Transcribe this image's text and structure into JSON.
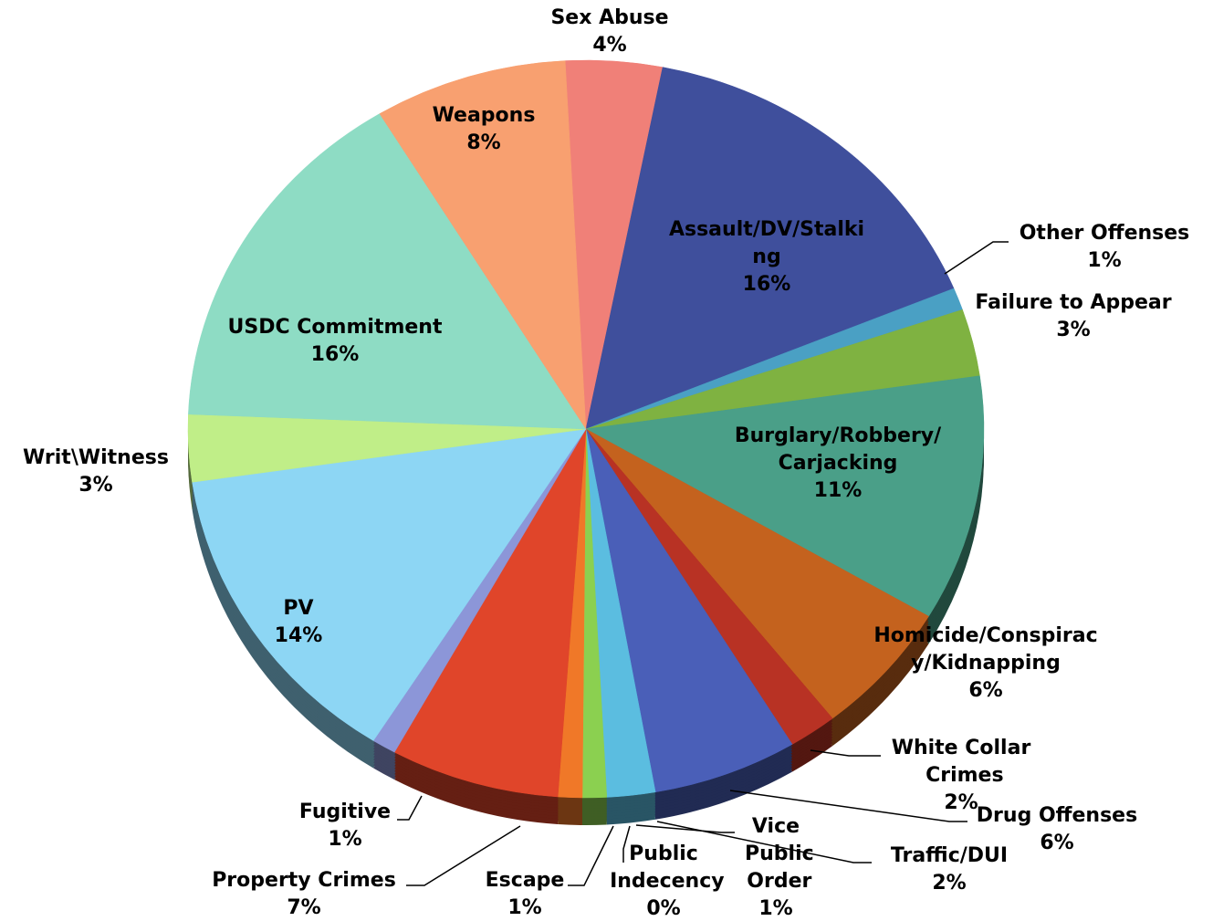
{
  "chart_data": {
    "type": "pie",
    "categories": [
      "Sex Abuse",
      "Assault/DV/Stalking",
      "Other Offenses",
      "Failure to Appear",
      "Burglary/Robbery/Carjacking",
      "Homicide/Conspiracy/Kidnapping",
      "White Collar Crimes",
      "Drug Offenses",
      "Traffic/DUI",
      "Vice Public Order",
      "Public Indecency",
      "Escape",
      "Property Crimes",
      "Fugitive",
      "PV",
      "Writ\\Witness",
      "USDC Commitment",
      "Weapons"
    ],
    "values": [
      4,
      16,
      1,
      3,
      11,
      6,
      2,
      6,
      2,
      1,
      0,
      1,
      7,
      1,
      14,
      3,
      16,
      8
    ],
    "value_labels": [
      "4%",
      "16%",
      "1%",
      "3%",
      "11%",
      "6%",
      "2%",
      "6%",
      "2%",
      "1%",
      "0%",
      "1%",
      "7%",
      "1%",
      "14%",
      "3%",
      "16%",
      "8%"
    ],
    "colors": [
      "#f08078",
      "#3f4f9c",
      "#4aa0c4",
      "#7fb241",
      "#4a9f88",
      "#c4621e",
      "#b83224",
      "#4a5fb8",
      "#5bbde0",
      "#8bd050",
      "#a0d860",
      "#f07828",
      "#e0452a",
      "#8c96d8",
      "#8dd6f4",
      "#c0ee88",
      "#8edcc4",
      "#f8a070"
    ]
  }
}
